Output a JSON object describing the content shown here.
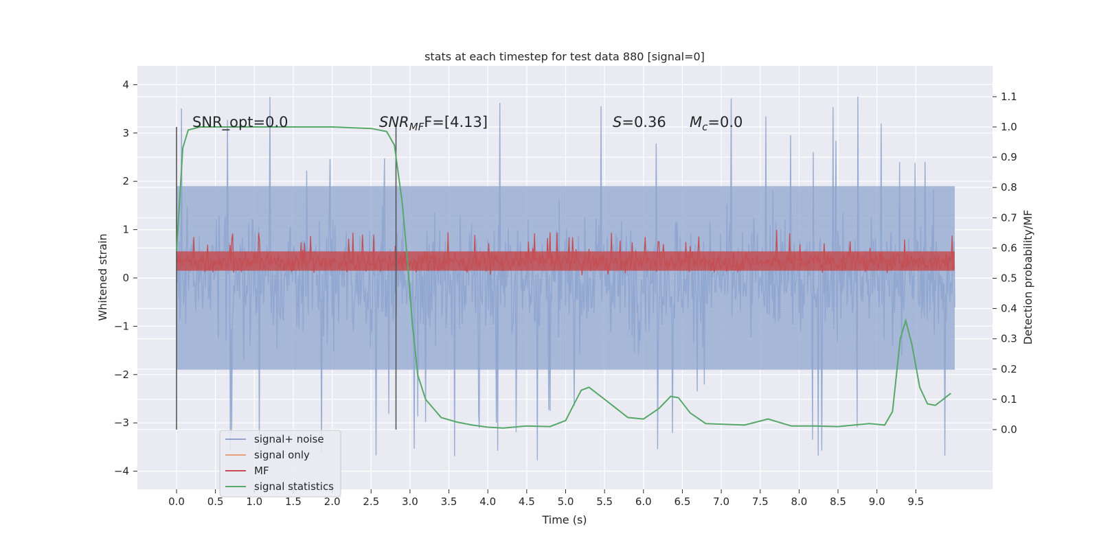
{
  "chart_data": {
    "type": "line",
    "title": "stats at each timestep for test data 880 [signal=0]",
    "xlabel": "Time (s)",
    "ylabel": "Whitened strain",
    "ylabel_right": "Detection probability/MF",
    "xlim": [
      -0.5,
      10.5
    ],
    "ylim": [
      -4.4,
      4.4
    ],
    "ylim_right": [
      -0.2,
      1.2
    ],
    "xticks": [
      "0.0",
      "0.5",
      "1.0",
      "1.5",
      "2.0",
      "2.5",
      "3.0",
      "3.5",
      "4.0",
      "4.5",
      "5.0",
      "5.5",
      "6.0",
      "6.5",
      "7.0",
      "7.5",
      "8.0",
      "8.5",
      "9.0",
      "9.5"
    ],
    "yticks": [
      "4",
      "3",
      "2",
      "1",
      "0",
      "−1",
      "−2",
      "−3",
      "−4"
    ],
    "yticks_right": [
      "1.1",
      "1.0",
      "0.9",
      "0.8",
      "0.7",
      "0.6",
      "0.5",
      "0.4",
      "0.3",
      "0.2",
      "0.1",
      "0.0"
    ],
    "grid": true,
    "legend_position": "lower-left",
    "annotations": {
      "snr_opt": "SNR_opt=0.0",
      "snr_mf_prefix": "SNR",
      "snr_mf_sub": "MF",
      "snr_mf_suffix": "F=[4.13]",
      "s_var": "S",
      "s_value": "=0.36",
      "mc_var": "M",
      "mc_sub": "c",
      "mc_value": "=0.0"
    },
    "vertical_markers": [
      0.0,
      2.82
    ],
    "series": [
      {
        "name": "signal+ noise",
        "color": "#8fa6cf",
        "axis": "left",
        "note": "whitened noise, x from 0.0 to 10.0 s",
        "typical_range": [
          -1.9,
          1.9
        ],
        "extremes": [
          -4.05,
          4.03
        ]
      },
      {
        "name": "signal only",
        "color": "#e8a07e",
        "axis": "left",
        "values_x": [],
        "values_y": []
      },
      {
        "name": "MF",
        "color": "#c44e52",
        "axis": "left",
        "note": "matched-filter output, x from 0.0 to 10.0 s",
        "typical_range": [
          0.1,
          0.6
        ],
        "extremes": [
          0.0,
          1.0
        ]
      },
      {
        "name": "signal statistics",
        "color": "#55a868",
        "axis": "right",
        "x": [
          0.0,
          0.08,
          0.15,
          0.3,
          0.6,
          1.0,
          1.5,
          2.0,
          2.5,
          2.7,
          2.8,
          2.9,
          2.97,
          3.03,
          3.1,
          3.2,
          3.3,
          3.4,
          3.6,
          3.8,
          4.0,
          4.2,
          4.5,
          4.8,
          5.0,
          5.1,
          5.2,
          5.3,
          5.4,
          5.6,
          5.8,
          6.0,
          6.2,
          6.35,
          6.45,
          6.6,
          6.8,
          7.0,
          7.3,
          7.6,
          7.9,
          8.2,
          8.5,
          8.9,
          9.1,
          9.2,
          9.3,
          9.37,
          9.45,
          9.55,
          9.65,
          9.75,
          9.85,
          9.95
        ],
        "y": [
          0.59,
          0.93,
          0.99,
          1.0,
          1.0,
          1.0,
          1.0,
          1.0,
          0.995,
          0.985,
          0.94,
          0.75,
          0.55,
          0.35,
          0.18,
          0.1,
          0.07,
          0.04,
          0.025,
          0.015,
          0.008,
          0.005,
          0.012,
          0.01,
          0.03,
          0.08,
          0.13,
          0.14,
          0.12,
          0.08,
          0.04,
          0.035,
          0.07,
          0.11,
          0.105,
          0.055,
          0.02,
          0.018,
          0.015,
          0.035,
          0.012,
          0.012,
          0.01,
          0.02,
          0.015,
          0.06,
          0.3,
          0.36,
          0.28,
          0.14,
          0.085,
          0.08,
          0.1,
          0.12
        ]
      }
    ]
  }
}
